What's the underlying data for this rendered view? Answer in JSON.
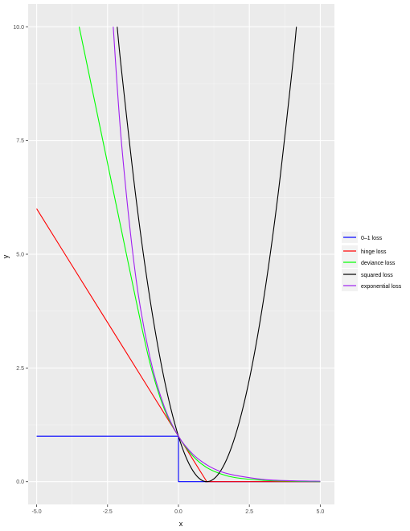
{
  "chart_data": {
    "type": "line",
    "xlabel": "x",
    "ylabel": "y",
    "xlim": [
      -5.3,
      5.5
    ],
    "ylim": [
      -0.5,
      10.5
    ],
    "x_ticks": [
      -5.0,
      -2.5,
      0.0,
      2.5,
      5.0
    ],
    "x_tick_labels": [
      "-5.0",
      "-2.5",
      "0.0",
      "2.5",
      "5.0"
    ],
    "y_ticks": [
      0.0,
      2.5,
      5.0,
      7.5,
      10.0
    ],
    "y_tick_labels": [
      "0.0",
      "2.5",
      "5.0",
      "7.5",
      "10.0"
    ],
    "grid": true,
    "legend_position": "right",
    "legend": [
      {
        "name": "0–1 loss",
        "color": "#0000ff"
      },
      {
        "name": "hinge loss",
        "color": "#ff0000"
      },
      {
        "name": "deviance loss",
        "color": "#00ff00"
      },
      {
        "name": "squared loss",
        "color": "#000000"
      },
      {
        "name": "exponential loss",
        "color": "#a020f0"
      }
    ],
    "series": [
      {
        "name": "0–1 loss",
        "color": "#0000ff",
        "x": [
          -5,
          -0.001,
          0,
          0.001,
          5
        ],
        "y": [
          1,
          1,
          1,
          0,
          0
        ]
      },
      {
        "name": "hinge loss",
        "color": "#ff0000",
        "x": [
          -5,
          -4,
          -3,
          -2,
          -1,
          0,
          1,
          2,
          3,
          4,
          5
        ],
        "y": [
          6,
          5,
          4,
          3,
          2,
          1,
          0,
          0,
          0,
          0,
          0
        ]
      },
      {
        "name": "deviance loss",
        "color": "#00ff00",
        "x": [
          -3.5,
          -3,
          -2.5,
          -2,
          -1.5,
          -1,
          -0.5,
          0,
          0.5,
          1,
          1.5,
          2,
          3,
          4,
          5
        ],
        "y": [
          10.0,
          8.5,
          7.0,
          5.5,
          4.0,
          2.6,
          1.6,
          1.0,
          0.57,
          0.31,
          0.17,
          0.09,
          0.03,
          0.01,
          0.0
        ]
      },
      {
        "name": "squared loss",
        "color": "#000000",
        "x": [
          -2.16,
          -2,
          -1.5,
          -1,
          -0.5,
          0,
          0.5,
          1,
          1.5,
          2,
          2.5,
          3,
          3.5,
          4,
          4.16
        ],
        "y": [
          10.0,
          9.0,
          6.25,
          4.0,
          2.25,
          1.0,
          0.25,
          0.0,
          0.25,
          1.0,
          2.25,
          4.0,
          6.25,
          9.0,
          10.0
        ]
      },
      {
        "name": "exponential loss",
        "color": "#a020f0",
        "x": [
          -2.3,
          -2,
          -1.5,
          -1,
          -0.5,
          0,
          0.5,
          1,
          1.5,
          2,
          3,
          4,
          5
        ],
        "y": [
          10.0,
          7.39,
          4.48,
          2.72,
          1.65,
          1.0,
          0.61,
          0.37,
          0.22,
          0.14,
          0.05,
          0.02,
          0.01
        ]
      }
    ]
  }
}
